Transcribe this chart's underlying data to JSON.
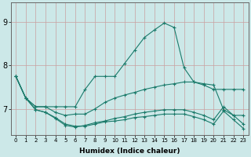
{
  "xlabel": "Humidex (Indice chaleur)",
  "ylabel": "",
  "background_color": "#cce8e8",
  "plot_bg_color": "#cce8e8",
  "grid_color": "#c8a0a0",
  "line_color": "#1a7a6a",
  "x_ticks": [
    0,
    1,
    2,
    3,
    4,
    5,
    6,
    7,
    8,
    9,
    10,
    11,
    12,
    13,
    14,
    15,
    16,
    17,
    18,
    19,
    20,
    21,
    22,
    23
  ],
  "y_ticks": [
    7,
    8,
    9
  ],
  "ylim": [
    6.4,
    9.45
  ],
  "xlim": [
    -0.5,
    23.5
  ],
  "curves": [
    [
      7.75,
      7.25,
      7.05,
      7.05,
      7.05,
      7.05,
      7.05,
      7.45,
      7.75,
      7.75,
      7.75,
      8.05,
      8.35,
      8.65,
      8.82,
      8.98,
      8.88,
      7.95,
      7.62,
      7.55,
      7.45,
      7.45,
      7.45,
      7.45
    ],
    [
      7.75,
      7.25,
      7.05,
      7.05,
      6.92,
      6.85,
      6.88,
      6.88,
      7.0,
      7.15,
      7.25,
      7.32,
      7.38,
      7.45,
      7.5,
      7.55,
      7.58,
      7.62,
      7.62,
      7.58,
      7.55,
      6.98,
      6.85,
      6.85
    ],
    [
      7.75,
      7.25,
      6.98,
      6.92,
      6.78,
      6.62,
      6.58,
      6.62,
      6.68,
      6.72,
      6.78,
      6.82,
      6.88,
      6.92,
      6.95,
      6.98,
      6.98,
      6.98,
      6.92,
      6.85,
      6.75,
      7.05,
      6.85,
      6.65
    ],
    [
      7.75,
      7.25,
      6.98,
      6.92,
      6.8,
      6.65,
      6.6,
      6.6,
      6.65,
      6.7,
      6.72,
      6.75,
      6.8,
      6.82,
      6.85,
      6.88,
      6.88,
      6.88,
      6.82,
      6.75,
      6.65,
      6.95,
      6.75,
      6.55
    ]
  ]
}
